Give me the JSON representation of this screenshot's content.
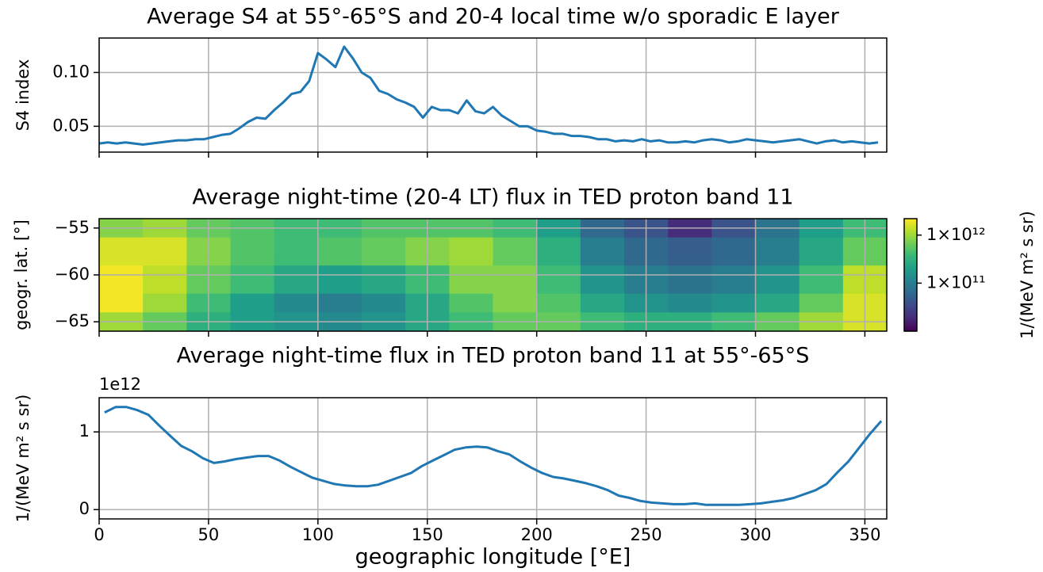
{
  "chart_data": [
    {
      "type": "line",
      "title": "Average S4 at 55°-65°S and 20-4 local time w/o sporadic E layer",
      "y_label": "S4 index",
      "x": [
        0,
        4,
        8,
        12,
        16,
        20,
        24,
        28,
        32,
        36,
        40,
        44,
        48,
        52,
        56,
        60,
        64,
        68,
        72,
        76,
        80,
        84,
        88,
        92,
        96,
        100,
        104,
        108,
        112,
        116,
        120,
        124,
        128,
        132,
        136,
        140,
        144,
        148,
        152,
        156,
        160,
        164,
        168,
        172,
        176,
        180,
        184,
        188,
        192,
        196,
        200,
        204,
        208,
        212,
        216,
        220,
        224,
        228,
        232,
        236,
        240,
        244,
        248,
        252,
        256,
        260,
        264,
        268,
        272,
        276,
        280,
        284,
        288,
        292,
        296,
        300,
        304,
        308,
        312,
        316,
        320,
        324,
        328,
        332,
        336,
        340,
        344,
        348,
        352,
        356
      ],
      "values": [
        0.034,
        0.035,
        0.034,
        0.035,
        0.034,
        0.033,
        0.034,
        0.035,
        0.036,
        0.037,
        0.037,
        0.038,
        0.038,
        0.04,
        0.042,
        0.043,
        0.048,
        0.054,
        0.058,
        0.057,
        0.065,
        0.072,
        0.08,
        0.082,
        0.092,
        0.118,
        0.112,
        0.105,
        0.124,
        0.113,
        0.1,
        0.095,
        0.083,
        0.08,
        0.075,
        0.072,
        0.068,
        0.058,
        0.068,
        0.065,
        0.065,
        0.062,
        0.074,
        0.064,
        0.062,
        0.068,
        0.06,
        0.055,
        0.05,
        0.05,
        0.046,
        0.045,
        0.043,
        0.043,
        0.041,
        0.041,
        0.04,
        0.038,
        0.038,
        0.036,
        0.037,
        0.036,
        0.038,
        0.036,
        0.037,
        0.035,
        0.035,
        0.036,
        0.035,
        0.037,
        0.038,
        0.037,
        0.035,
        0.036,
        0.038,
        0.037,
        0.036,
        0.035,
        0.036,
        0.037,
        0.038,
        0.036,
        0.034,
        0.036,
        0.037,
        0.035,
        0.036,
        0.035,
        0.034,
        0.035
      ],
      "color": "#1f77b4",
      "xlim": [
        0,
        360
      ],
      "xticks": [
        0,
        50,
        100,
        150,
        200,
        250,
        300,
        350
      ],
      "show_xtick_labels": false,
      "ylim": [
        0.026,
        0.132
      ],
      "yticks": [
        0.05,
        {
          "value": 0.1,
          "label": "0.10"
        }
      ],
      "grid": true
    },
    {
      "type": "heatmap",
      "title": "Average night-time (20-4 LT) flux in TED proton band 11",
      "y_label": "geogr. lat. [°]",
      "x_edges": [
        0,
        20,
        40,
        60,
        80,
        100,
        120,
        140,
        160,
        180,
        200,
        220,
        240,
        260,
        280,
        300,
        320,
        340,
        360
      ],
      "y_edges": [
        -54,
        -55,
        -56,
        -57,
        -58,
        -59,
        -60,
        -61,
        -62,
        -63,
        -64,
        -65,
        -66
      ],
      "z": [
        [
          800000000000.0,
          1000000000000.0,
          600000000000.0,
          500000000000.0,
          400000000000.0,
          400000000000.0,
          500000000000.0,
          500000000000.0,
          500000000000.0,
          400000000000.0,
          200000000000.0,
          60000000000.0,
          40000000000.0,
          20000000000.0,
          40000000000.0,
          80000000000.0,
          200000000000.0,
          400000000000.0
        ],
        [
          800000000000.0,
          1000000000000.0,
          600000000000.0,
          500000000000.0,
          400000000000.0,
          400000000000.0,
          500000000000.0,
          500000000000.0,
          500000000000.0,
          400000000000.0,
          200000000000.0,
          60000000000.0,
          40000000000.0,
          20000000000.0,
          40000000000.0,
          80000000000.0,
          200000000000.0,
          400000000000.0
        ],
        [
          1600000000000.0,
          1600000000000.0,
          800000000000.0,
          500000000000.0,
          400000000000.0,
          500000000000.0,
          600000000000.0,
          800000000000.0,
          1000000000000.0,
          600000000000.0,
          300000000000.0,
          100000000000.0,
          60000000000.0,
          50000000000.0,
          60000000000.0,
          100000000000.0,
          250000000000.0,
          600000000000.0
        ],
        [
          1600000000000.0,
          1600000000000.0,
          800000000000.0,
          500000000000.0,
          400000000000.0,
          500000000000.0,
          600000000000.0,
          800000000000.0,
          1000000000000.0,
          600000000000.0,
          300000000000.0,
          100000000000.0,
          60000000000.0,
          50000000000.0,
          60000000000.0,
          100000000000.0,
          250000000000.0,
          600000000000.0
        ],
        [
          1600000000000.0,
          1600000000000.0,
          800000000000.0,
          500000000000.0,
          400000000000.0,
          500000000000.0,
          600000000000.0,
          800000000000.0,
          1000000000000.0,
          600000000000.0,
          300000000000.0,
          100000000000.0,
          60000000000.0,
          50000000000.0,
          60000000000.0,
          100000000000.0,
          250000000000.0,
          600000000000.0
        ],
        [
          2000000000000.0,
          1300000000000.0,
          600000000000.0,
          400000000000.0,
          250000000000.0,
          200000000000.0,
          250000000000.0,
          400000000000.0,
          800000000000.0,
          800000000000.0,
          400000000000.0,
          160000000000.0,
          100000000000.0,
          80000000000.0,
          100000000000.0,
          160000000000.0,
          400000000000.0,
          1300000000000.0
        ],
        [
          2000000000000.0,
          1300000000000.0,
          600000000000.0,
          400000000000.0,
          250000000000.0,
          200000000000.0,
          250000000000.0,
          400000000000.0,
          800000000000.0,
          800000000000.0,
          400000000000.0,
          160000000000.0,
          100000000000.0,
          80000000000.0,
          100000000000.0,
          160000000000.0,
          400000000000.0,
          1300000000000.0
        ],
        [
          2000000000000.0,
          1300000000000.0,
          600000000000.0,
          400000000000.0,
          250000000000.0,
          200000000000.0,
          250000000000.0,
          400000000000.0,
          800000000000.0,
          800000000000.0,
          400000000000.0,
          160000000000.0,
          100000000000.0,
          80000000000.0,
          100000000000.0,
          160000000000.0,
          400000000000.0,
          1300000000000.0
        ],
        [
          2000000000000.0,
          1000000000000.0,
          400000000000.0,
          200000000000.0,
          130000000000.0,
          100000000000.0,
          130000000000.0,
          250000000000.0,
          500000000000.0,
          800000000000.0,
          500000000000.0,
          250000000000.0,
          160000000000.0,
          130000000000.0,
          160000000000.0,
          250000000000.0,
          600000000000.0,
          1600000000000.0
        ],
        [
          2000000000000.0,
          1000000000000.0,
          400000000000.0,
          200000000000.0,
          130000000000.0,
          100000000000.0,
          130000000000.0,
          250000000000.0,
          500000000000.0,
          800000000000.0,
          500000000000.0,
          250000000000.0,
          160000000000.0,
          130000000000.0,
          160000000000.0,
          250000000000.0,
          600000000000.0,
          1600000000000.0
        ],
        [
          1000000000000.0,
          600000000000.0,
          300000000000.0,
          200000000000.0,
          160000000000.0,
          130000000000.0,
          160000000000.0,
          250000000000.0,
          400000000000.0,
          600000000000.0,
          600000000000.0,
          400000000000.0,
          300000000000.0,
          300000000000.0,
          400000000000.0,
          600000000000.0,
          1000000000000.0,
          1600000000000.0
        ],
        [
          1000000000000.0,
          600000000000.0,
          300000000000.0,
          200000000000.0,
          160000000000.0,
          130000000000.0,
          160000000000.0,
          250000000000.0,
          400000000000.0,
          600000000000.0,
          600000000000.0,
          400000000000.0,
          300000000000.0,
          300000000000.0,
          400000000000.0,
          600000000000.0,
          1000000000000.0,
          1600000000000.0
        ]
      ],
      "xlim": [
        0,
        360
      ],
      "xticks": [
        0,
        50,
        100,
        150,
        200,
        250,
        300,
        350
      ],
      "show_xtick_labels": false,
      "ylim": [
        -66,
        -54
      ],
      "yticks": [
        {
          "value": -55,
          "label": "−55"
        },
        {
          "value": -60,
          "label": "−60"
        },
        {
          "value": -65,
          "label": "−65"
        }
      ],
      "grid": true,
      "colorbar": {
        "label": "1/(MeV m² s sr)",
        "log": true,
        "clim": [
          10000000000.0,
          2200000000000.0
        ],
        "ticks": [
          {
            "value": 1000000000000.0,
            "label": "1×10¹²"
          },
          {
            "value": 100000000000.0,
            "label": "1×10¹¹"
          }
        ]
      }
    },
    {
      "type": "line",
      "title": "Average night-time flux in TED proton band 11 at 55°-65°S",
      "y_label": "1/(MeV m² s sr)",
      "y_offset_label": "1e12",
      "x_label": "geographic longitude [°E]",
      "x": [
        2.5,
        7.5,
        12.5,
        17.5,
        22.5,
        27.5,
        32.5,
        37.5,
        42.5,
        47.5,
        52.5,
        57.5,
        62.5,
        67.5,
        72.5,
        77.5,
        82.5,
        87.5,
        92.5,
        97.5,
        102.5,
        107.5,
        112.5,
        117.5,
        122.5,
        127.5,
        132.5,
        137.5,
        142.5,
        147.5,
        152.5,
        157.5,
        162.5,
        167.5,
        172.5,
        177.5,
        182.5,
        187.5,
        192.5,
        197.5,
        202.5,
        207.5,
        212.5,
        217.5,
        222.5,
        227.5,
        232.5,
        237.5,
        242.5,
        247.5,
        252.5,
        257.5,
        262.5,
        267.5,
        272.5,
        277.5,
        282.5,
        287.5,
        292.5,
        297.5,
        302.5,
        307.5,
        312.5,
        317.5,
        322.5,
        327.5,
        332.5,
        337.5,
        342.5,
        347.5,
        352.5,
        357.5
      ],
      "values": [
        1.25,
        1.32,
        1.32,
        1.28,
        1.22,
        1.08,
        0.95,
        0.82,
        0.75,
        0.66,
        0.6,
        0.62,
        0.65,
        0.67,
        0.69,
        0.69,
        0.63,
        0.55,
        0.48,
        0.41,
        0.37,
        0.33,
        0.31,
        0.3,
        0.3,
        0.32,
        0.37,
        0.42,
        0.47,
        0.56,
        0.63,
        0.7,
        0.77,
        0.8,
        0.81,
        0.8,
        0.75,
        0.71,
        0.62,
        0.54,
        0.47,
        0.42,
        0.4,
        0.37,
        0.34,
        0.3,
        0.25,
        0.18,
        0.15,
        0.11,
        0.09,
        0.08,
        0.07,
        0.07,
        0.08,
        0.06,
        0.06,
        0.06,
        0.06,
        0.07,
        0.08,
        0.1,
        0.12,
        0.15,
        0.2,
        0.25,
        0.33,
        0.48,
        0.62,
        0.8,
        0.98,
        1.14
      ],
      "color": "#1f77b4",
      "xlim": [
        0,
        360
      ],
      "xticks": [
        0,
        50,
        100,
        150,
        200,
        250,
        300,
        350
      ],
      "show_xtick_labels": true,
      "ylim": [
        -0.12,
        1.44
      ],
      "yticks": [
        0,
        1
      ],
      "grid": true
    }
  ]
}
